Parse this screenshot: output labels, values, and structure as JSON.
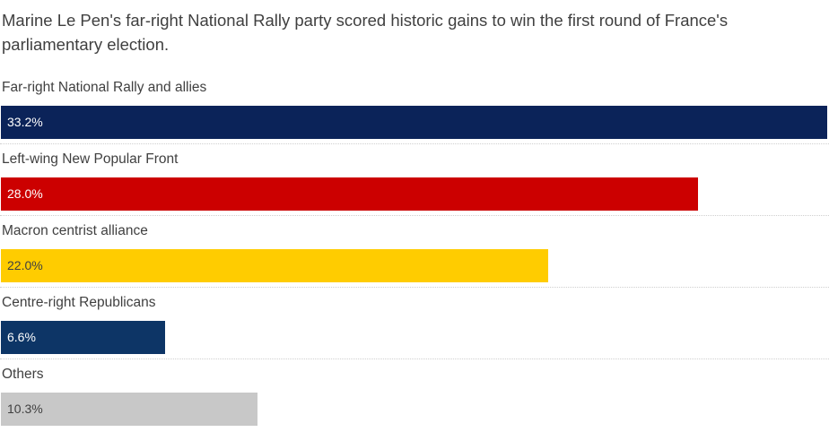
{
  "subtitle": "Marine Le Pen's far-right National Rally party scored historic gains to win the first round of France's parliamentary election.",
  "chart_data": {
    "type": "bar",
    "orientation": "horizontal",
    "title": "",
    "subtitle": "Marine Le Pen's far-right National Rally party scored historic gains to win the first round of France's parliamentary election.",
    "xlabel": "",
    "ylabel": "",
    "xlim": [
      0,
      33.2
    ],
    "grid": false,
    "legend": "none",
    "categories": [
      "Far-right National Rally and allies",
      "Left-wing New Popular Front",
      "Macron centrist alliance",
      "Centre-right Republicans",
      "Others"
    ],
    "values": [
      33.2,
      28.0,
      22.0,
      6.6,
      10.3
    ],
    "value_labels": [
      "33.2%",
      "28.0%",
      "22.0%",
      "6.6%",
      "10.3%"
    ],
    "colors": [
      "#0b2359",
      "#cc0000",
      "#ffcc00",
      "#0d3566",
      "#c8c8c8"
    ],
    "label_colors": [
      "#ffffff",
      "#ffffff",
      "#404040",
      "#ffffff",
      "#404040"
    ]
  }
}
